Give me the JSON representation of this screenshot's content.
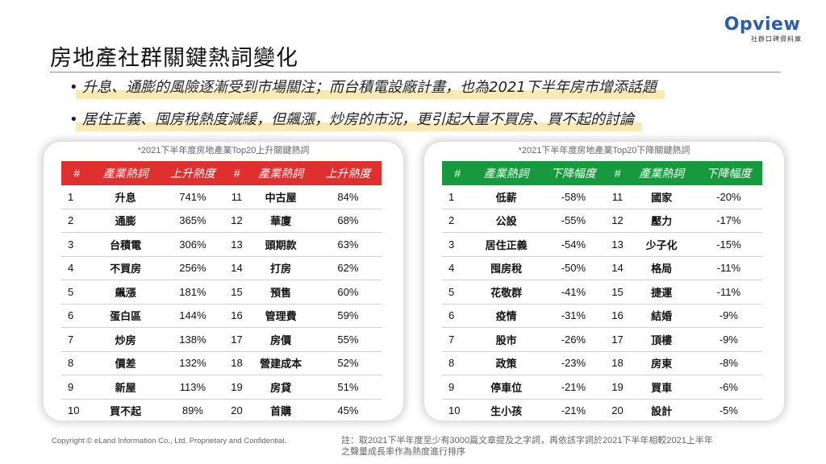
{
  "title": "房地產社群關鍵熱詞變化",
  "logo": {
    "word": "Opview",
    "subtitle": "社群口碑資料庫"
  },
  "bullets": [
    "升息、通膨的風險逐漸受到市場關注；而台積電設廠計畫，也為2021下半年房市增添話題",
    "居住正義、囤房稅熱度減緩，但飆漲，炒房的市況，更引起大量不買房、買不起的討論"
  ],
  "bullet_mark": "•",
  "rising": {
    "caption": "*2021下半年度房地產業Top20上升關鍵熱詞",
    "headers": [
      "#",
      "產業熱詞",
      "上升熱度",
      "#",
      "產業熱詞",
      "上升熱度"
    ],
    "rows": [
      [
        "1",
        "升息",
        "741%",
        "11",
        "中古屋",
        "84%"
      ],
      [
        "2",
        "通膨",
        "365%",
        "12",
        "華廈",
        "68%"
      ],
      [
        "3",
        "台積電",
        "306%",
        "13",
        "頭期款",
        "63%"
      ],
      [
        "4",
        "不買房",
        "256%",
        "14",
        "打房",
        "62%"
      ],
      [
        "5",
        "飆漲",
        "181%",
        "15",
        "預售",
        "60%"
      ],
      [
        "6",
        "蛋白區",
        "144%",
        "16",
        "管理費",
        "59%"
      ],
      [
        "7",
        "炒房",
        "138%",
        "17",
        "房價",
        "55%"
      ],
      [
        "8",
        "價差",
        "132%",
        "18",
        "營建成本",
        "52%"
      ],
      [
        "9",
        "新屋",
        "113%",
        "19",
        "房貸",
        "51%"
      ],
      [
        "10",
        "買不起",
        "89%",
        "20",
        "首購",
        "45%"
      ]
    ]
  },
  "falling": {
    "caption": "*2021下半年度房地產業Top20下降關鍵熱詞",
    "headers": [
      "#",
      "產業熱詞",
      "下降幅度",
      "#",
      "產業熱詞",
      "下降幅度"
    ],
    "rows": [
      [
        "1",
        "低薪",
        "-58%",
        "11",
        "國家",
        "-20%"
      ],
      [
        "2",
        "公設",
        "-55%",
        "12",
        "壓力",
        "-17%"
      ],
      [
        "3",
        "居住正義",
        "-54%",
        "13",
        "少子化",
        "-15%"
      ],
      [
        "4",
        "囤房稅",
        "-50%",
        "14",
        "格局",
        "-11%"
      ],
      [
        "5",
        "花敬群",
        "-41%",
        "15",
        "捷運",
        "-11%"
      ],
      [
        "6",
        "疫情",
        "-31%",
        "16",
        "結婚",
        "-9%"
      ],
      [
        "7",
        "股市",
        "-26%",
        "17",
        "頂樓",
        "-9%"
      ],
      [
        "8",
        "政策",
        "-23%",
        "18",
        "房東",
        "-8%"
      ],
      [
        "9",
        "停車位",
        "-21%",
        "19",
        "買車",
        "-6%"
      ],
      [
        "10",
        "生小孩",
        "-21%",
        "20",
        "設計",
        "-5%"
      ]
    ]
  },
  "footer": {
    "copyright": "Copyright © eLand Information Co., Ltd. Proprietary and Confidential.",
    "note": "註：取2021下半年度至少有3000篇文章提及之字詞，再依該字詞於2021下半年相較2021上半年之聲量成長率作為熱度進行排序"
  },
  "colors": {
    "rising_header": "#e02f2f",
    "falling_header": "#179a3e",
    "highlight": "#fbe9b3",
    "logo": "#2a5db0"
  }
}
